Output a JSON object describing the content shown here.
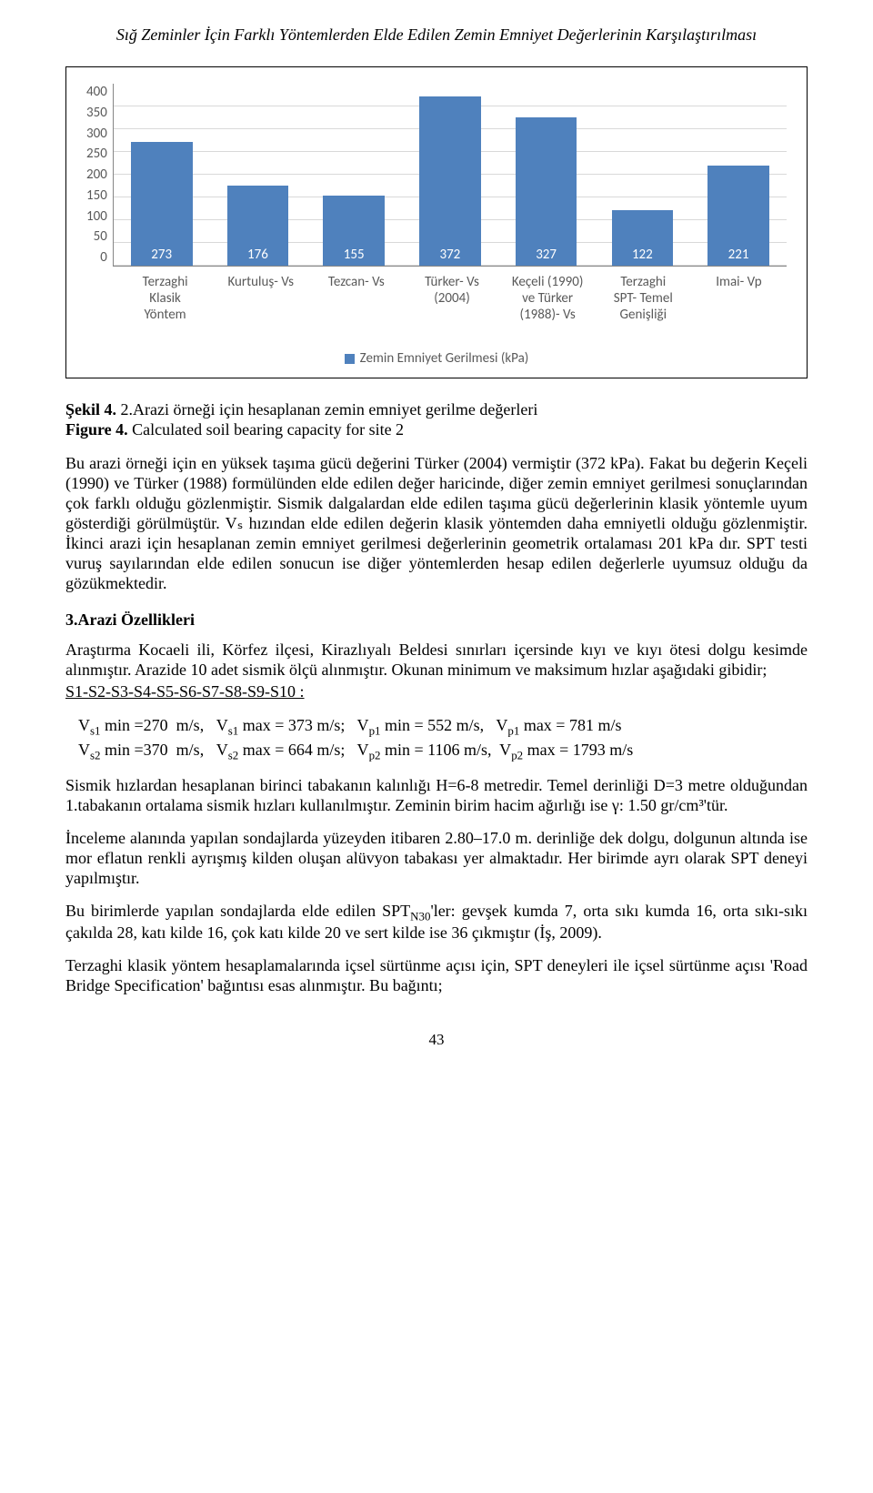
{
  "running_head": "Sığ Zeminler İçin Farklı Yöntemlerden Elde Edilen Zemin Emniyet Değerlerinin Karşılaştırılması",
  "chart": {
    "type": "bar",
    "y_ticks": [
      "400",
      "350",
      "300",
      "250",
      "200",
      "150",
      "100",
      "50",
      "0"
    ],
    "y_max": 400,
    "bar_color": "#4f81bd",
    "label_color_inside": "#ffffff",
    "grid_color": "#d9d9d9",
    "axis_color": "#868686",
    "tick_font_color": "#595959",
    "categories": [
      {
        "label": "Terzaghi\nKlasik\nYöntem",
        "value": 273
      },
      {
        "label": "Kurtuluş- Vs",
        "value": 176
      },
      {
        "label": "Tezcan- Vs",
        "value": 155
      },
      {
        "label": "Türker- Vs\n(2004)",
        "value": 372
      },
      {
        "label": "Keçeli (1990)\nve Türker\n(1988)- Vs",
        "value": 327
      },
      {
        "label": "Terzaghi\nSPT- Temel\nGenişliği",
        "value": 122
      },
      {
        "label": "Imai- Vp",
        "value": 221
      }
    ],
    "legend_label": "Zemin Emniyet Gerilmesi (kPa)",
    "legend_color": "#4f81bd"
  },
  "caption": {
    "sekil_bold": "Şekil 4.",
    "sekil_rest": " 2.Arazi örneği için hesaplanan zemin emniyet gerilme değerleri",
    "figure_bold": "Figure 4.",
    "figure_rest": " Calculated soil bearing capacity for site 2"
  },
  "para1": "Bu arazi örneği için en yüksek taşıma gücü değerini Türker (2004) vermiştir (372 kPa). Fakat bu değerin Keçeli (1990) ve Türker (1988) formülünden elde edilen değer haricinde, diğer zemin emniyet gerilmesi sonuçlarından çok farklı olduğu gözlenmiştir. Sismik dalgalardan elde edilen taşıma gücü değerlerinin klasik yöntemle uyum gösterdiği görülmüştür. Vₛ hızından elde edilen değerin klasik yöntemden daha emniyetli olduğu gözlenmiştir. İkinci arazi için hesaplanan zemin emniyet gerilmesi değerlerinin geometrik ortalaması 201 kPa dır. SPT testi vuruş sayılarından elde edilen sonucun ise diğer yöntemlerden hesap edilen değerlerle uyumsuz olduğu da gözükmektedir.",
  "section_head": "3.Arazi Özellikleri",
  "para2": "Araştırma Kocaeli ili, Körfez ilçesi, Kirazlıyalı Beldesi sınırları içersinde kıyı ve kıyı ötesi dolgu kesimde alınmıştır. Arazide 10 adet sismik ölçü alınmıştır. Okunan minimum ve maksimum hızlar aşağıdaki gibidir;",
  "stations_label": "S1-S2-S3-S4-S5-S6-S7-S8-S9-S10 :",
  "velocities": {
    "line1": "V_s1 min =270  m/s,   V_s1 max = 373 m/s;   V_p1 min = 552 m/s,   V_p1 max = 781 m/s",
    "line2": "V_s2 min =370  m/s,   V_s2 max = 664 m/s;   V_p2 min = 1106 m/s,  V_p2 max = 1793 m/s"
  },
  "para3": "Sismik hızlardan hesaplanan birinci tabakanın kalınlığı H=6-8 metredir. Temel derinliği D=3 metre olduğundan 1.tabakanın ortalama sismik hızları kullanılmıştır. Zeminin birim hacim ağırlığı ise γ: 1.50 gr/cm³'tür.",
  "para4": "İnceleme alanında yapılan sondajlarda yüzeyden itibaren 2.80–17.0 m. derinliğe dek dolgu, dolgunun altında ise mor eflatun renkli ayrışmış kilden oluşan alüvyon tabakası yer almaktadır. Her birimde ayrı olarak SPT deneyi yapılmıştır.",
  "para5_prefix": "Bu birimlerde yapılan sondajlarda elde edilen SPT",
  "para5_sub": "N30",
  "para5_rest": "'ler: gevşek kumda 7, orta sıkı kumda 16, orta sıkı-sıkı çakılda 28, katı kilde 16, çok katı kilde 20 ve sert kilde ise 36 çıkmıştır (İş, 2009).",
  "para6": "Terzaghi klasik yöntem hesaplamalarında içsel sürtünme açısı için, SPT deneyleri ile içsel sürtünme açısı 'Road Bridge Specification' bağıntısı esas alınmıştır. Bu bağıntı;",
  "page_number": "43"
}
